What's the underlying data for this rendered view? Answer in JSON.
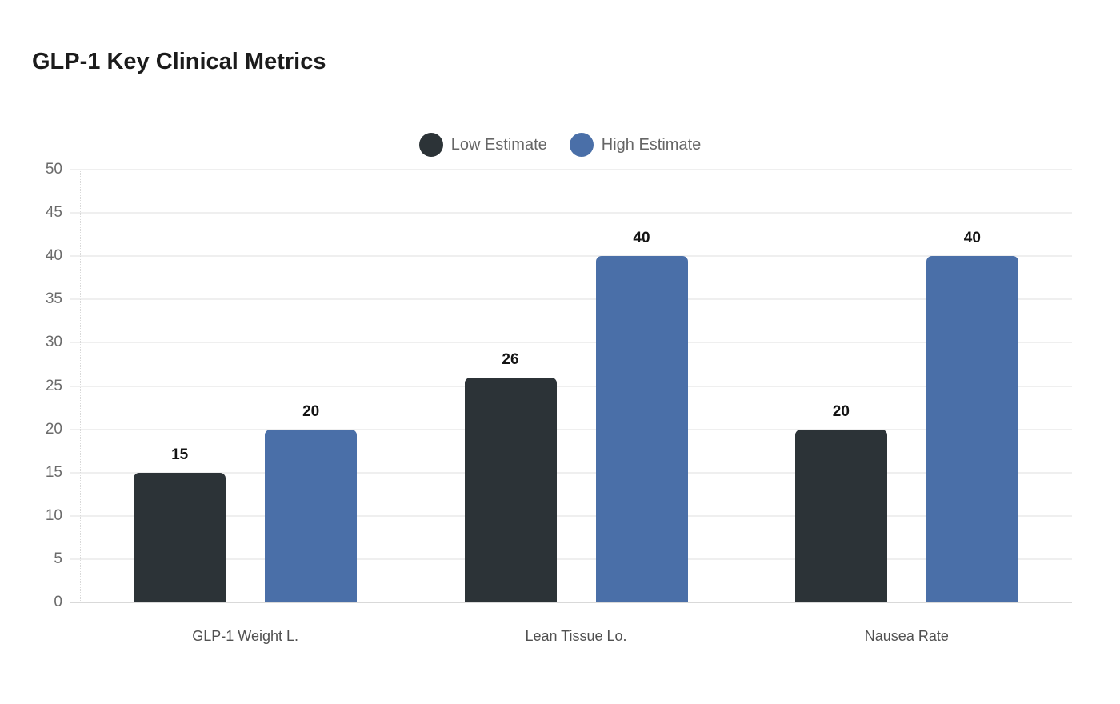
{
  "header": {
    "title": "GLP-1 Key Clinical Metrics"
  },
  "chart_data": {
    "type": "bar",
    "title": "GLP-1 Key Clinical Metrics",
    "categories": [
      "GLP-1 Weight L.",
      "Lean Tissue Lo.",
      "Nausea Rate"
    ],
    "series": [
      {
        "name": "Low Estimate",
        "color": "#2c3337",
        "values": [
          15,
          26,
          20
        ]
      },
      {
        "name": "High Estimate",
        "color": "#4a6fa8",
        "values": [
          20,
          40,
          40
        ]
      }
    ],
    "xlabel": "",
    "ylabel": "",
    "ylim": [
      0,
      50
    ],
    "y_ticks": [
      0,
      5,
      10,
      15,
      20,
      25,
      30,
      35,
      40,
      45,
      50
    ],
    "grid": true,
    "data_labels": true,
    "legend_position": "top-center"
  },
  "colors": {
    "background": "#ffffff",
    "title_text": "#1b1b1b",
    "legend_text": "#666666",
    "tick_text": "#6b6b6b",
    "category_text": "#515151",
    "value_label_text": "#141414",
    "gridline": "#efefef",
    "baseline": "#d9d9d9"
  }
}
